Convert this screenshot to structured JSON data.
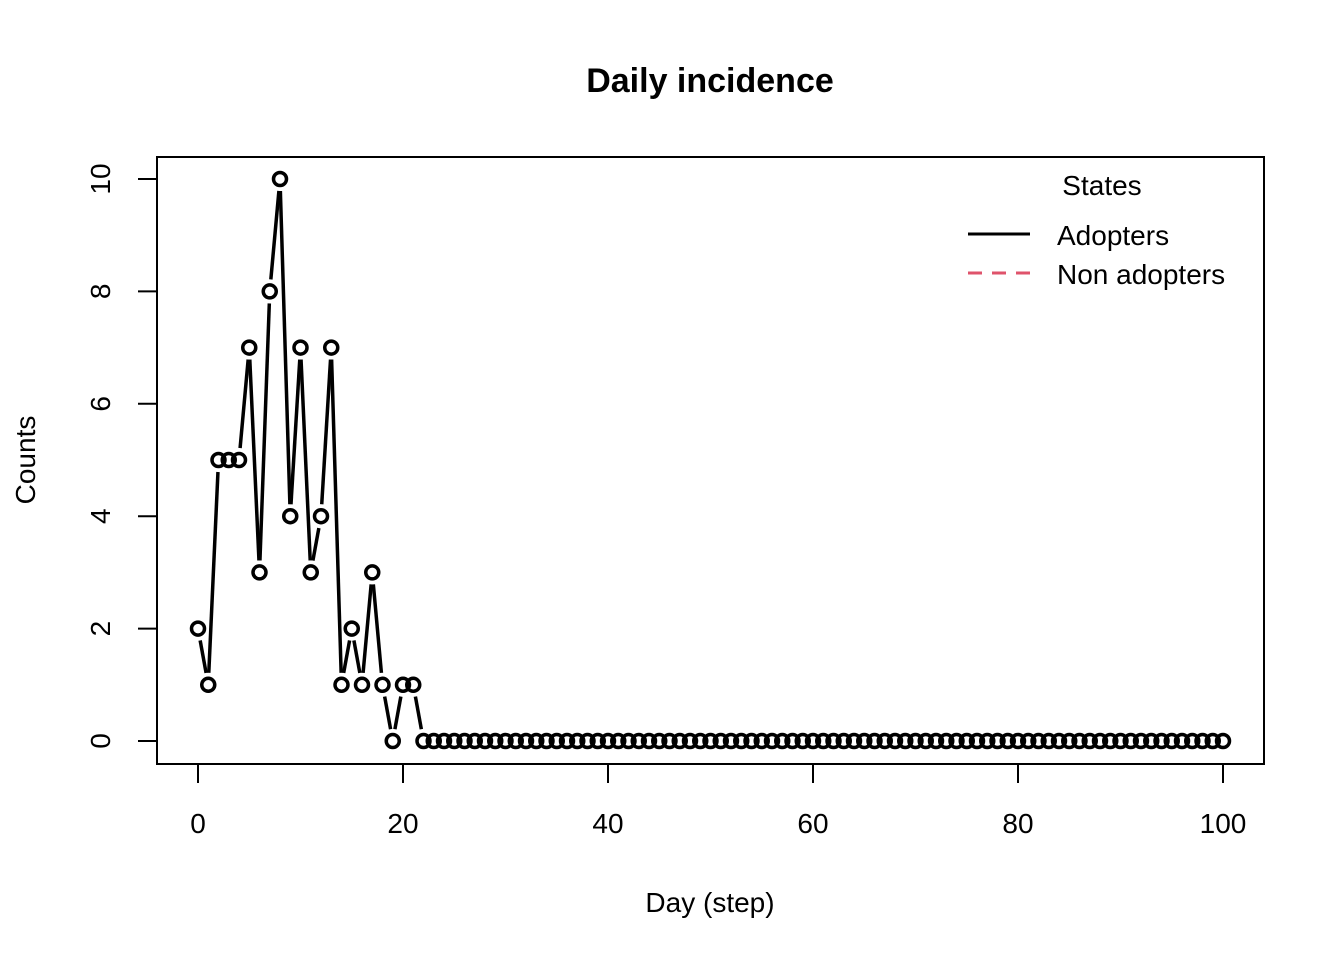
{
  "chart_data": {
    "type": "line",
    "title": "Daily incidence",
    "xlabel": "Day (step)",
    "ylabel": "Counts",
    "xlim": [
      0,
      100
    ],
    "ylim": [
      0,
      10
    ],
    "x_ticks": [
      "0",
      "20",
      "40",
      "60",
      "80",
      "100"
    ],
    "y_ticks": [
      "0",
      "2",
      "4",
      "6",
      "8",
      "10"
    ],
    "grid": false,
    "legend": {
      "title": "States",
      "position": "top-right",
      "entries": [
        {
          "name": "Adopters",
          "color": "#000000",
          "style": "solid"
        },
        {
          "name": "Non adopters",
          "color": "#DF536B",
          "style": "dashed"
        }
      ]
    },
    "series": [
      {
        "name": "Adopters",
        "color": "#000000",
        "x": [
          0,
          1,
          2,
          3,
          4,
          5,
          6,
          7,
          8,
          9,
          10,
          11,
          12,
          13,
          14,
          15,
          16,
          17,
          18,
          19,
          20,
          21,
          22,
          23,
          24,
          25,
          26,
          27,
          28,
          29,
          30,
          31,
          32,
          33,
          34,
          35,
          36,
          37,
          38,
          39,
          40,
          41,
          42,
          43,
          44,
          45,
          46,
          47,
          48,
          49,
          50,
          51,
          52,
          53,
          54,
          55,
          56,
          57,
          58,
          59,
          60,
          61,
          62,
          63,
          64,
          65,
          66,
          67,
          68,
          69,
          70,
          71,
          72,
          73,
          74,
          75,
          76,
          77,
          78,
          79,
          80,
          81,
          82,
          83,
          84,
          85,
          86,
          87,
          88,
          89,
          90,
          91,
          92,
          93,
          94,
          95,
          96,
          97,
          98,
          99,
          100
        ],
        "values": [
          2,
          1,
          5,
          5,
          5,
          7,
          3,
          8,
          10,
          4,
          7,
          3,
          4,
          7,
          1,
          2,
          1,
          3,
          1,
          0,
          1,
          1,
          0,
          0,
          0,
          0,
          0,
          0,
          0,
          0,
          0,
          0,
          0,
          0,
          0,
          0,
          0,
          0,
          0,
          0,
          0,
          0,
          0,
          0,
          0,
          0,
          0,
          0,
          0,
          0,
          0,
          0,
          0,
          0,
          0,
          0,
          0,
          0,
          0,
          0,
          0,
          0,
          0,
          0,
          0,
          0,
          0,
          0,
          0,
          0,
          0,
          0,
          0,
          0,
          0,
          0,
          0,
          0,
          0,
          0,
          0,
          0,
          0,
          0,
          0,
          0,
          0,
          0,
          0,
          0,
          0,
          0,
          0,
          0,
          0,
          0,
          0,
          0,
          0,
          0,
          0
        ]
      }
    ]
  }
}
